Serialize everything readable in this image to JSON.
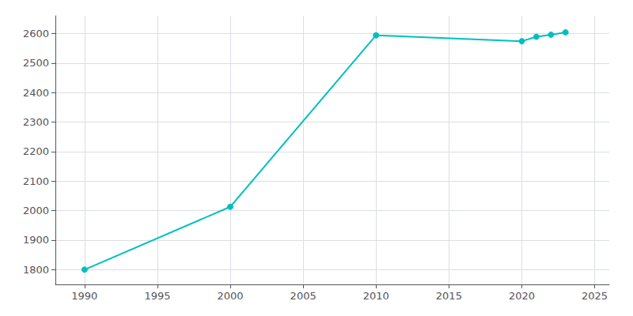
{
  "chart_data": {
    "type": "line",
    "x": [
      1990,
      2000,
      2010,
      2020,
      2021,
      2022,
      2023
    ],
    "values": [
      1800,
      2013,
      2594,
      2574,
      2589,
      2596,
      2604
    ],
    "color": "#00bfbf",
    "marker": "circle",
    "xlim": [
      1988,
      2026
    ],
    "ylim": [
      1750,
      2660
    ],
    "xticks": [
      1990,
      1995,
      2000,
      2005,
      2010,
      2015,
      2020,
      2025
    ],
    "yticks": [
      1800,
      1900,
      2000,
      2100,
      2200,
      2300,
      2400,
      2500,
      2600
    ],
    "grid": true
  }
}
